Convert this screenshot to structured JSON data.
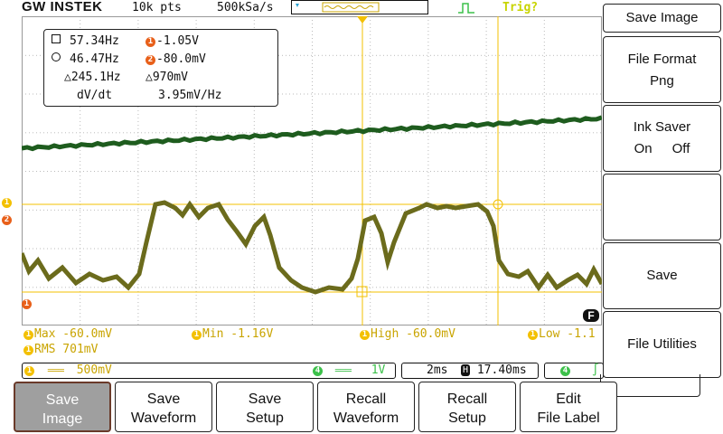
{
  "header": {
    "brand": "GW INSTEK",
    "record_length": "10k pts",
    "sample_rate": "500kSa/s",
    "trigger_status": "Trig?"
  },
  "measurements_box": {
    "row1_left": "57.34Hz",
    "row1_right": "-1.05V",
    "row2_left": "46.47Hz",
    "row2_right": "-80.0mV",
    "row3_left": "245.1Hz",
    "row3_right": "970mV",
    "row4_label": "dV/dt",
    "row4_value": "3.95mV/Hz",
    "badge1": "1",
    "badge2": "2",
    "delta": "△"
  },
  "channel_markers": {
    "ch1_left": "1",
    "ch2_left": "2",
    "ground": "1",
    "f_marker": "F"
  },
  "auto_measure": {
    "max": "Max -60.0mV",
    "min": "Min -1.16V",
    "high": "High -60.0mV",
    "low": "Low -1.1",
    "rms": "RMS 701mV",
    "badge": "1"
  },
  "status": {
    "ch1_scale": "500mV",
    "ch4_scale": "1V",
    "timebase": "2ms",
    "position": "17.40ms",
    "ch1_badge": "1",
    "ch4_badge": "4",
    "ch4_badge2": "4",
    "h_icon": "H",
    "dc_glyph": "═══",
    "edge_glyph": "∫"
  },
  "side_menu": {
    "title": "Save Image",
    "file_format_label": "File Format",
    "file_format_value": "Png",
    "ink_saver_label": "Ink Saver",
    "ink_on": "On",
    "ink_off": "Off",
    "save": "Save",
    "file_utilities": "File Utilities"
  },
  "bottom_menu": [
    {
      "line1": "Save",
      "line2": "Image"
    },
    {
      "line1": "Save",
      "line2": "Waveform"
    },
    {
      "line1": "Save",
      "line2": "Setup"
    },
    {
      "line1": "Recall",
      "line2": "Waveform"
    },
    {
      "line1": "Recall",
      "line2": "Setup"
    },
    {
      "line1": "Edit",
      "line2": "File Label"
    }
  ],
  "colors": {
    "ch1": "#6b6b1c",
    "ch2": "#1e5c1e",
    "cursor": "#f3c000",
    "accent_orange": "#e8601a",
    "trigger_green": "#3cc04a"
  }
}
